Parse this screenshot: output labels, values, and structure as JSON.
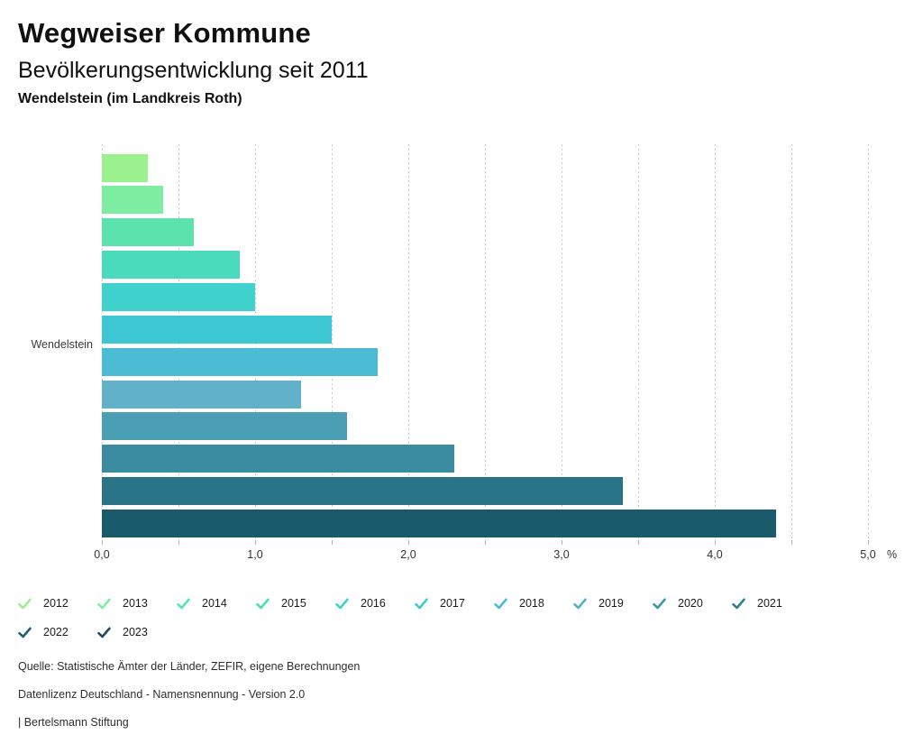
{
  "header": {
    "title": "Wegweiser Kommune",
    "subtitle": "Bevölkerungsentwicklung seit 2011",
    "location": "Wendelstein (im Landkreis Roth)"
  },
  "chart_data": {
    "type": "bar",
    "orientation": "horizontal",
    "group_label": "Wendelstein",
    "categories": [
      "2012",
      "2013",
      "2014",
      "2015",
      "2016",
      "2017",
      "2018",
      "2019",
      "2020",
      "2021",
      "2022",
      "2023"
    ],
    "values": [
      0.3,
      0.4,
      0.6,
      0.9,
      1.0,
      1.5,
      1.8,
      1.3,
      1.6,
      2.3,
      3.4,
      4.4
    ],
    "colors": [
      "#9af18d",
      "#7deda1",
      "#5ce3ad",
      "#49dbbc",
      "#3fd1cb",
      "#3dc7d4",
      "#4bbcd3",
      "#61b1c9",
      "#4a9fb4",
      "#3b8ca0",
      "#2a7488",
      "#195a6b"
    ],
    "unit": "%",
    "x_tick_labels": [
      "0,0",
      "1,0",
      "2,0",
      "3,0",
      "4,0",
      "5,0"
    ],
    "xlim": [
      0,
      5
    ],
    "gridline_step": 0.5,
    "grid": "dotted-vertical",
    "legend_position": "bottom"
  },
  "legend": {
    "items": [
      {
        "label": "2012",
        "color": "#9af18d",
        "icon": "check-icon"
      },
      {
        "label": "2013",
        "color": "#7deda1",
        "icon": "check-icon"
      },
      {
        "label": "2014",
        "color": "#5ce3ad",
        "icon": "check-icon"
      },
      {
        "label": "2015",
        "color": "#49dbbc",
        "icon": "check-icon"
      },
      {
        "label": "2016",
        "color": "#3fd1cb",
        "icon": "check-icon"
      },
      {
        "label": "2017",
        "color": "#3dc7d4",
        "icon": "check-icon"
      },
      {
        "label": "2018",
        "color": "#4bbcd3",
        "icon": "check-icon"
      },
      {
        "label": "2019",
        "color": "#55aecb",
        "icon": "check-icon"
      },
      {
        "label": "2020",
        "color": "#3e96ad",
        "icon": "check-icon"
      },
      {
        "label": "2021",
        "color": "#2f7e96",
        "icon": "check-icon"
      },
      {
        "label": "2022",
        "color": "#205d7a",
        "icon": "check-icon"
      },
      {
        "label": "2023",
        "color": "#1b4d66",
        "icon": "check-icon"
      }
    ]
  },
  "footer": {
    "source": "Quelle: Statistische Ämter der Länder, ZEFIR, eigene Berechnungen",
    "license": "Datenlizenz Deutschland - Namensnennung - Version 2.0",
    "attribution": "| Bertelsmann Stiftung"
  }
}
